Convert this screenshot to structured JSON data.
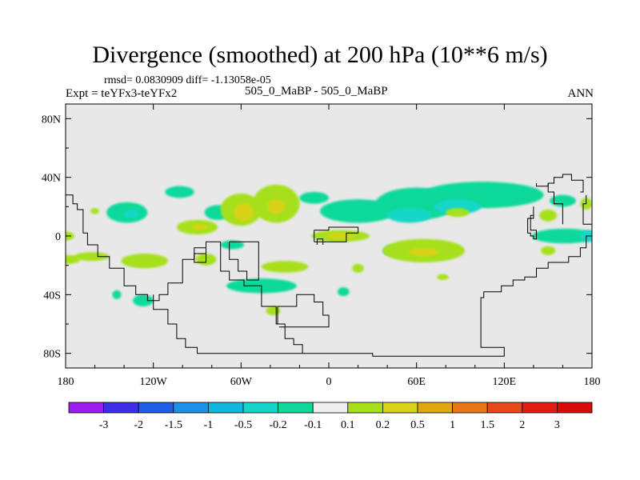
{
  "chart_data": {
    "type": "heatmap",
    "title": "Divergence (smoothed) at 200 hPa (10**6 m/s)",
    "stats": "rmsd= 0.0830909 diff= -1.13058e-05",
    "left_label": "Expt = teYFx3-teYFx2",
    "center_label": "505_0_MaBP - 505_0_MaBP",
    "right_label": "ANN",
    "x_ticks": [
      "180",
      "120W",
      "60W",
      "0",
      "60E",
      "120E",
      "180"
    ],
    "y_ticks": [
      "80N",
      "40N",
      "0",
      "40S",
      "80S"
    ],
    "x_range": [
      -180,
      180
    ],
    "y_range": [
      -90,
      90
    ],
    "colorbar": {
      "labels": [
        "-3",
        "-2",
        "-1.5",
        "-1",
        "-0.5",
        "-0.2",
        "-0.1",
        "0.1",
        "0.2",
        "0.5",
        "1",
        "1.5",
        "2",
        "3"
      ],
      "colors": [
        "#9b1eef",
        "#3d2ee8",
        "#1f5fe6",
        "#1e90e6",
        "#10b8e0",
        "#12d6c8",
        "#0fd99a",
        "#eeeeee",
        "#a6e01a",
        "#d6d318",
        "#e0a810",
        "#e67818",
        "#e84818",
        "#e41a14",
        "#d80a0a"
      ]
    },
    "background_color": "#e8e8e8",
    "fields": [
      {
        "lon": -180,
        "lat": 0,
        "rx": 6,
        "ry": 3,
        "level": "0.1"
      },
      {
        "lon": -178,
        "lat": -16,
        "rx": 8,
        "ry": 3,
        "level": "0.1"
      },
      {
        "lon": -162,
        "lat": -14,
        "rx": 12,
        "ry": 3,
        "level": "0.1"
      },
      {
        "lon": -145,
        "lat": -40,
        "rx": 3,
        "ry": 3,
        "level": "-0.1"
      },
      {
        "lon": -138,
        "lat": 16,
        "rx": 14,
        "ry": 7,
        "level": "-0.1"
      },
      {
        "lon": -135,
        "lat": 15,
        "rx": 5,
        "ry": 3,
        "level": "-0.2"
      },
      {
        "lon": -160,
        "lat": 17,
        "rx": 3,
        "ry": 2,
        "level": "0.1"
      },
      {
        "lon": -126,
        "lat": -17,
        "rx": 16,
        "ry": 5,
        "level": "0.1"
      },
      {
        "lon": -127,
        "lat": -44,
        "rx": 7,
        "ry": 4,
        "level": "-0.1"
      },
      {
        "lon": -102,
        "lat": 30,
        "rx": 10,
        "ry": 4,
        "level": "-0.1"
      },
      {
        "lon": -90,
        "lat": 6,
        "rx": 14,
        "ry": 5,
        "level": "0.1"
      },
      {
        "lon": -88,
        "lat": 6,
        "rx": 5,
        "ry": 2,
        "level": "0.2"
      },
      {
        "lon": -76,
        "lat": 16,
        "rx": 9,
        "ry": 5,
        "level": "-0.1"
      },
      {
        "lon": -60,
        "lat": 18,
        "rx": 14,
        "ry": 11,
        "level": "0.1"
      },
      {
        "lon": -58,
        "lat": 16,
        "rx": 7,
        "ry": 6,
        "level": "0.2"
      },
      {
        "lon": -36,
        "lat": 22,
        "rx": 16,
        "ry": 13,
        "level": "0.1"
      },
      {
        "lon": -36,
        "lat": 20,
        "rx": 6,
        "ry": 5,
        "level": "0.2"
      },
      {
        "lon": -66,
        "lat": -6,
        "rx": 8,
        "ry": 3,
        "level": "-0.1"
      },
      {
        "lon": -84,
        "lat": -16,
        "rx": 7,
        "ry": 4,
        "level": "0.1"
      },
      {
        "lon": -46,
        "lat": -34,
        "rx": 24,
        "ry": 5,
        "level": "-0.1"
      },
      {
        "lon": -30,
        "lat": -21,
        "rx": 16,
        "ry": 4,
        "level": "0.1"
      },
      {
        "lon": -38,
        "lat": -51,
        "rx": 5,
        "ry": 3,
        "level": "0.1"
      },
      {
        "lon": -10,
        "lat": 26,
        "rx": 10,
        "ry": 4,
        "level": "-0.1"
      },
      {
        "lon": 8,
        "lat": 0,
        "rx": 20,
        "ry": 4,
        "level": "0.1"
      },
      {
        "lon": 8,
        "lat": 0,
        "rx": 10,
        "ry": 2,
        "level": "0.2"
      },
      {
        "lon": 20,
        "lat": 17,
        "rx": 26,
        "ry": 8,
        "level": "-0.1"
      },
      {
        "lon": 60,
        "lat": 22,
        "rx": 28,
        "ry": 11,
        "level": "-0.1"
      },
      {
        "lon": 55,
        "lat": 14,
        "rx": 15,
        "ry": 5,
        "level": "-0.2"
      },
      {
        "lon": 105,
        "lat": 28,
        "rx": 42,
        "ry": 9,
        "level": "-0.1"
      },
      {
        "lon": 88,
        "lat": 20,
        "rx": 16,
        "ry": 5,
        "level": "-0.2"
      },
      {
        "lon": 88,
        "lat": 16,
        "rx": 8,
        "ry": 3,
        "level": "0.1"
      },
      {
        "lon": 45,
        "lat": -10,
        "rx": 8,
        "ry": 4,
        "level": "-0.1"
      },
      {
        "lon": 65,
        "lat": -10,
        "rx": 28,
        "ry": 8,
        "level": "0.1"
      },
      {
        "lon": 65,
        "lat": -11,
        "rx": 10,
        "ry": 3,
        "level": "0.2"
      },
      {
        "lon": 20,
        "lat": -22,
        "rx": 4,
        "ry": 3,
        "level": "0.1"
      },
      {
        "lon": 10,
        "lat": -38,
        "rx": 4,
        "ry": 3,
        "level": "-0.1"
      },
      {
        "lon": 78,
        "lat": -28,
        "rx": 4,
        "ry": 2,
        "level": "0.1"
      },
      {
        "lon": 160,
        "lat": 24,
        "rx": 9,
        "ry": 4,
        "level": "-0.1"
      },
      {
        "lon": 150,
        "lat": 14,
        "rx": 6,
        "ry": 4,
        "level": "0.1"
      },
      {
        "lon": 161,
        "lat": 0,
        "rx": 22,
        "ry": 5,
        "level": "-0.1"
      },
      {
        "lon": 176,
        "lat": 22,
        "rx": 4,
        "ry": 4,
        "level": "0.1"
      },
      {
        "lon": 178,
        "lat": 0,
        "rx": 6,
        "ry": 4,
        "level": "-0.2"
      },
      {
        "lon": 150,
        "lat": -10,
        "rx": 5,
        "ry": 3,
        "level": "0.1"
      }
    ],
    "coastlines": [
      [
        [
          -180,
          28
        ],
        [
          -175,
          28
        ],
        [
          -175,
          22
        ],
        [
          -172,
          22
        ],
        [
          -172,
          18
        ],
        [
          -168,
          18
        ],
        [
          -168,
          2
        ],
        [
          -165,
          2
        ],
        [
          -165,
          -6
        ],
        [
          -158,
          -6
        ],
        [
          -158,
          -14
        ],
        [
          -150,
          -14
        ],
        [
          -150,
          -22
        ],
        [
          -140,
          -22
        ],
        [
          -140,
          -34
        ],
        [
          -132,
          -34
        ],
        [
          -132,
          -40
        ],
        [
          -124,
          -40
        ],
        [
          -124,
          -44
        ],
        [
          -116,
          -44
        ],
        [
          -116,
          -40
        ],
        [
          -110,
          -40
        ],
        [
          -110,
          -32
        ],
        [
          -100,
          -32
        ],
        [
          -100,
          -16
        ],
        [
          -92,
          -16
        ],
        [
          -92,
          -8
        ],
        [
          -84,
          -8
        ],
        [
          -84,
          -4
        ],
        [
          -74,
          -4
        ],
        [
          -74,
          -24
        ],
        [
          -68,
          -24
        ],
        [
          -68,
          -30
        ],
        [
          -58,
          -30
        ],
        [
          -58,
          -34
        ],
        [
          -46,
          -34
        ],
        [
          -46,
          -48
        ],
        [
          -36,
          -48
        ],
        [
          -36,
          -60
        ],
        [
          -30,
          -60
        ],
        [
          -30,
          -70
        ],
        [
          -24,
          -70
        ],
        [
          -24,
          -74
        ],
        [
          -18,
          -74
        ],
        [
          -18,
          -80
        ],
        [
          -90,
          -80
        ],
        [
          -90,
          -76
        ],
        [
          -98,
          -76
        ],
        [
          -98,
          -70
        ],
        [
          -104,
          -70
        ],
        [
          -104,
          -60
        ],
        [
          -110,
          -60
        ],
        [
          -110,
          -50
        ],
        [
          -120,
          -50
        ],
        [
          -120,
          -40
        ]
      ],
      [
        [
          -84,
          -4
        ],
        [
          -84,
          -12
        ],
        [
          -92,
          -12
        ],
        [
          -92,
          -18
        ],
        [
          -84,
          -18
        ],
        [
          -84,
          -4
        ]
      ],
      [
        [
          -68,
          -4
        ],
        [
          -68,
          -16
        ],
        [
          -62,
          -16
        ],
        [
          -62,
          -24
        ],
        [
          -56,
          -24
        ],
        [
          -56,
          -30
        ],
        [
          -48,
          -30
        ],
        [
          -48,
          -4
        ],
        [
          -68,
          -4
        ]
      ],
      [
        [
          -35,
          -60
        ],
        [
          -35,
          -48
        ],
        [
          -22,
          -48
        ],
        [
          -22,
          -40
        ],
        [
          -10,
          -40
        ],
        [
          -10,
          -45
        ],
        [
          -4,
          -45
        ],
        [
          -4,
          -54
        ],
        [
          0,
          -54
        ],
        [
          0,
          -62
        ],
        [
          -34,
          -62
        ]
      ],
      [
        [
          -10,
          -4
        ],
        [
          -10,
          4
        ],
        [
          0,
          4
        ],
        [
          0,
          6
        ],
        [
          20,
          6
        ],
        [
          20,
          2
        ],
        [
          12,
          2
        ],
        [
          12,
          -4
        ],
        [
          -10,
          -4
        ]
      ],
      [
        [
          -8,
          -6
        ],
        [
          -8,
          -2
        ],
        [
          -4,
          -2
        ],
        [
          -4,
          -6
        ]
      ],
      [
        [
          -18,
          -80
        ],
        [
          30,
          -80
        ],
        [
          30,
          -82
        ],
        [
          120,
          -82
        ],
        [
          120,
          -76
        ],
        [
          104,
          -76
        ],
        [
          104,
          -42
        ],
        [
          106,
          -42
        ],
        [
          106,
          -38
        ],
        [
          118,
          -38
        ],
        [
          118,
          -34
        ],
        [
          126,
          -34
        ],
        [
          126,
          -30
        ],
        [
          134,
          -30
        ],
        [
          134,
          -28
        ],
        [
          142,
          -28
        ],
        [
          142,
          -22
        ],
        [
          150,
          -22
        ],
        [
          150,
          -18
        ],
        [
          164,
          -18
        ],
        [
          164,
          -14
        ],
        [
          172,
          -14
        ],
        [
          172,
          -8
        ],
        [
          176,
          -8
        ],
        [
          176,
          0
        ],
        [
          180,
          0
        ]
      ],
      [
        [
          140,
          20
        ],
        [
          140,
          14
        ],
        [
          138,
          14
        ],
        [
          138,
          4
        ],
        [
          142,
          4
        ],
        [
          142,
          -2
        ],
        [
          140,
          -2
        ],
        [
          140,
          0
        ],
        [
          138,
          0
        ],
        [
          138,
          2
        ],
        [
          136,
          2
        ],
        [
          136,
          12
        ],
        [
          140,
          12
        ],
        [
          140,
          20
        ]
      ],
      [
        [
          142,
          36
        ],
        [
          142,
          34
        ],
        [
          150,
          34
        ],
        [
          150,
          36
        ],
        [
          154,
          36
        ],
        [
          154,
          40
        ],
        [
          160,
          40
        ],
        [
          160,
          42
        ],
        [
          166,
          42
        ],
        [
          166,
          38
        ],
        [
          174,
          38
        ],
        [
          174,
          30
        ],
        [
          172,
          30
        ]
      ],
      [
        [
          160,
          8
        ],
        [
          160,
          22
        ],
        [
          154,
          22
        ],
        [
          154,
          30
        ],
        [
          150,
          30
        ],
        [
          150,
          36
        ]
      ],
      [
        [
          176,
          28
        ],
        [
          176,
          22
        ],
        [
          174,
          22
        ],
        [
          174,
          8
        ],
        [
          180,
          8
        ]
      ]
    ]
  }
}
